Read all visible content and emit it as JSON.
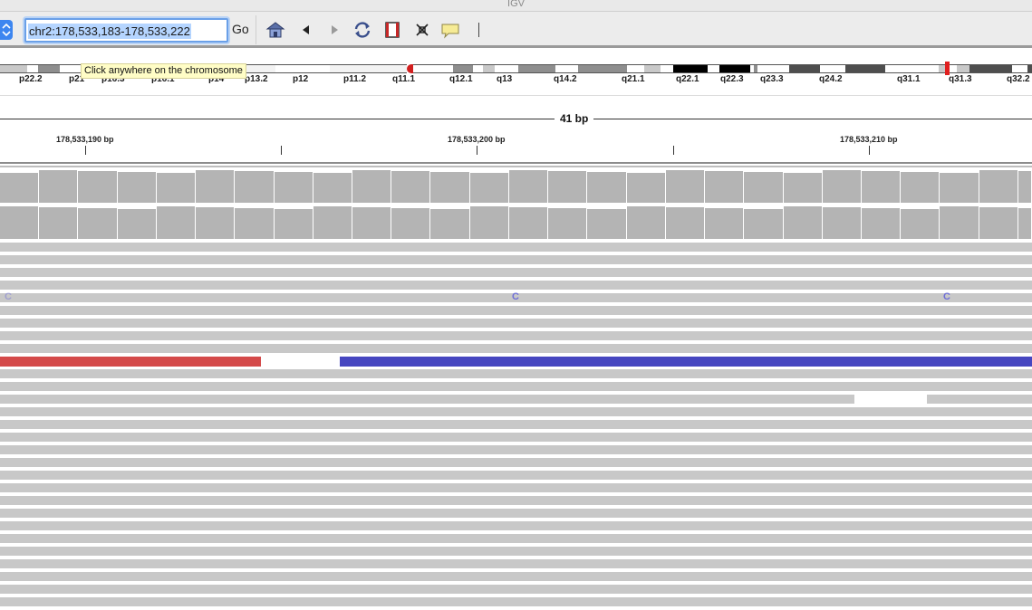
{
  "window": {
    "title": "IGV"
  },
  "toolbar": {
    "locus": "chr2:178,533,183-178,533,222",
    "go_label": "Go",
    "icons": [
      "home-icon",
      "back-arrow-icon",
      "forward-arrow-icon",
      "refresh-icon",
      "region-of-interest-icon",
      "fit-to-window-icon",
      "popup-info-icon"
    ]
  },
  "ideogram": {
    "chromosome": "chr2",
    "tooltip": "Click anywhere on the chromosome",
    "bands": [
      "p22.2",
      "p21",
      "p16.3",
      "p16.1",
      "p14",
      "p13.2",
      "p12",
      "p11.2",
      "q11.1",
      "q12.1",
      "q13",
      "q14.2",
      "q21.1",
      "q22.1",
      "q22.3",
      "q23.3",
      "q24.2",
      "q31.1",
      "q31.3",
      "q32.2"
    ]
  },
  "ruler": {
    "span_label": "41 bp",
    "ticks": [
      "178,533,190 bp",
      "178,533,200 bp",
      "178,533,210 bp"
    ]
  },
  "alignments": {
    "mismatch_base": "C",
    "colors": {
      "read": "#c8c8c8",
      "coverage": "#b4b4b4",
      "mismatch": "#6f6fd6",
      "insert_left": "#d44a4a",
      "insert_right": "#4646c0"
    }
  }
}
